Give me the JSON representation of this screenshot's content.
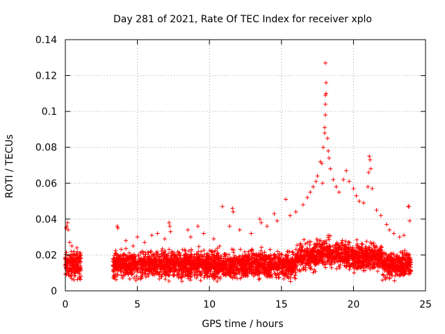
{
  "chart_data": {
    "type": "scatter",
    "title": "Day 281 of 2021, Rate Of TEC Index for receiver xplo",
    "xlabel": "GPS time / hours",
    "ylabel": "ROTI / TECUs",
    "xlim": [
      0,
      25
    ],
    "ylim": [
      0,
      0.14
    ],
    "x_ticks": [
      0,
      5,
      10,
      15,
      20,
      25
    ],
    "x_tick_labels": [
      "0",
      "5",
      "10",
      "15",
      "20",
      "25"
    ],
    "y_ticks": [
      0,
      0.02,
      0.04,
      0.06,
      0.08,
      0.1,
      0.12,
      0.14
    ],
    "y_tick_labels": [
      "0",
      "0.02",
      "0.04",
      "0.06",
      "0.08",
      "0.1",
      "0.12",
      "0.14"
    ],
    "grid": true,
    "marker": "+",
    "color": "#ff0000",
    "series": [
      {
        "name": "ROTI",
        "coverage_hours": [
          [
            0.0,
            1.1
          ],
          [
            3.3,
            24.0
          ]
        ],
        "points": [
          [
            0.05,
            0.035
          ],
          [
            0.1,
            0.036
          ],
          [
            0.15,
            0.038
          ],
          [
            0.2,
            0.034
          ],
          [
            0.3,
            0.027
          ],
          [
            0.45,
            0.025
          ],
          [
            0.6,
            0.022
          ],
          [
            0.8,
            0.024
          ],
          [
            1.0,
            0.021
          ],
          [
            3.6,
            0.036
          ],
          [
            3.65,
            0.035
          ],
          [
            4.2,
            0.028
          ],
          [
            4.7,
            0.025
          ],
          [
            5.0,
            0.03
          ],
          [
            5.5,
            0.027
          ],
          [
            6.0,
            0.031
          ],
          [
            6.4,
            0.032
          ],
          [
            6.9,
            0.029
          ],
          [
            7.2,
            0.038
          ],
          [
            7.25,
            0.036
          ],
          [
            7.3,
            0.033
          ],
          [
            8.5,
            0.034
          ],
          [
            8.7,
            0.03
          ],
          [
            9.2,
            0.036
          ],
          [
            9.6,
            0.032
          ],
          [
            10.3,
            0.029
          ],
          [
            10.9,
            0.047
          ],
          [
            11.4,
            0.036
          ],
          [
            11.6,
            0.046
          ],
          [
            11.65,
            0.044
          ],
          [
            12.1,
            0.034
          ],
          [
            12.9,
            0.032
          ],
          [
            13.5,
            0.04
          ],
          [
            13.6,
            0.038
          ],
          [
            14.0,
            0.036
          ],
          [
            14.5,
            0.043
          ],
          [
            14.7,
            0.039
          ],
          [
            15.3,
            0.051
          ],
          [
            15.6,
            0.042
          ],
          [
            16.0,
            0.044
          ],
          [
            16.5,
            0.048
          ],
          [
            16.8,
            0.052
          ],
          [
            17.0,
            0.055
          ],
          [
            17.2,
            0.058
          ],
          [
            17.4,
            0.061
          ],
          [
            17.5,
            0.064
          ],
          [
            17.7,
            0.072
          ],
          [
            17.8,
            0.071
          ],
          [
            17.85,
            0.06
          ],
          [
            17.9,
            0.08
          ],
          [
            18.0,
            0.091
          ],
          [
            18.0,
            0.088
          ],
          [
            18.05,
            0.098
          ],
          [
            18.05,
            0.104
          ],
          [
            18.05,
            0.109
          ],
          [
            18.1,
            0.11
          ],
          [
            18.1,
            0.116
          ],
          [
            18.05,
            0.127
          ],
          [
            18.2,
            0.085
          ],
          [
            18.25,
            0.078
          ],
          [
            18.3,
            0.074
          ],
          [
            18.4,
            0.068
          ],
          [
            18.6,
            0.062
          ],
          [
            18.8,
            0.058
          ],
          [
            19.0,
            0.055
          ],
          [
            19.3,
            0.062
          ],
          [
            19.5,
            0.067
          ],
          [
            19.7,
            0.061
          ],
          [
            20.0,
            0.057
          ],
          [
            20.2,
            0.053
          ],
          [
            20.4,
            0.05
          ],
          [
            20.7,
            0.049
          ],
          [
            21.0,
            0.058
          ],
          [
            21.05,
            0.066
          ],
          [
            21.1,
            0.075
          ],
          [
            21.15,
            0.073
          ],
          [
            21.2,
            0.068
          ],
          [
            21.3,
            0.057
          ],
          [
            21.6,
            0.045
          ],
          [
            21.9,
            0.042
          ],
          [
            22.3,
            0.037
          ],
          [
            22.5,
            0.034
          ],
          [
            22.8,
            0.032
          ],
          [
            23.2,
            0.03
          ],
          [
            23.5,
            0.031
          ],
          [
            23.8,
            0.047
          ],
          [
            23.85,
            0.047
          ],
          [
            23.9,
            0.039
          ]
        ]
      }
    ]
  }
}
